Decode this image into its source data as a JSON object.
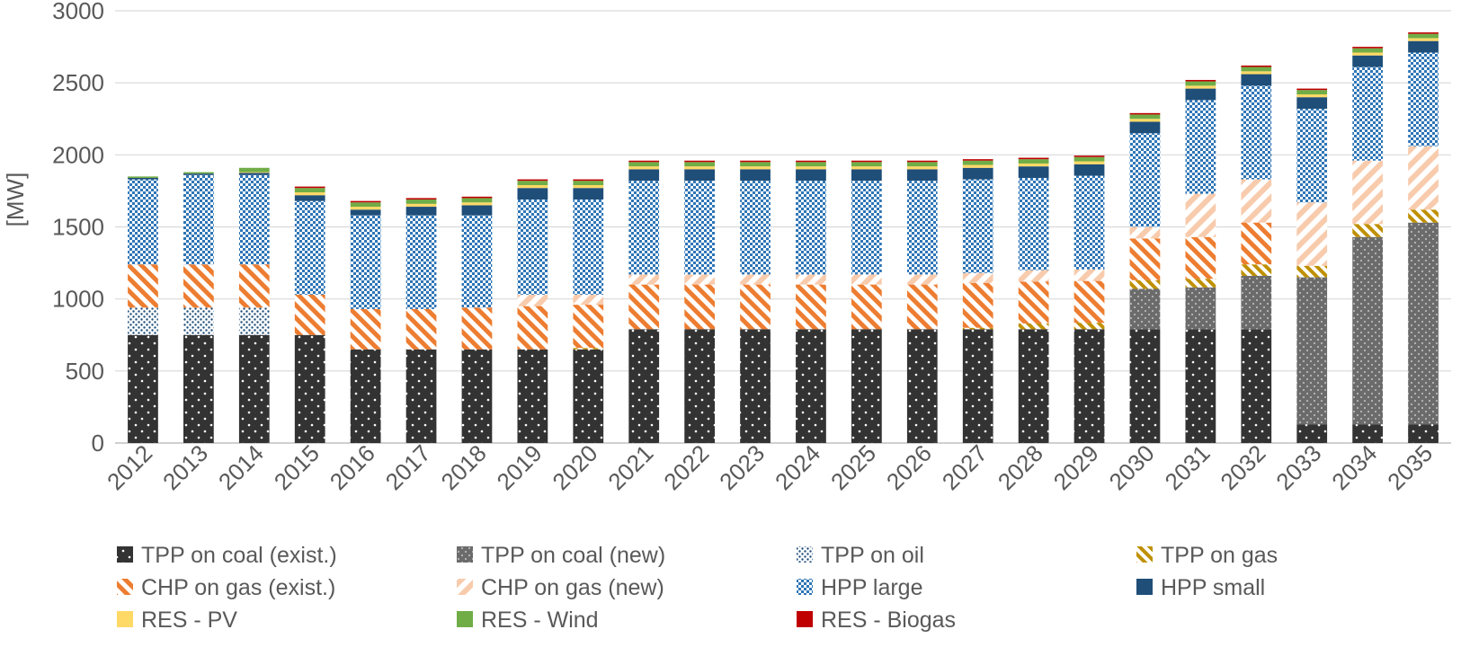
{
  "chart_data": {
    "type": "bar",
    "stacked": true,
    "title": "",
    "xlabel": "",
    "ylabel": "[MW]",
    "ylim": [
      0,
      3000
    ],
    "yticks": [
      0,
      500,
      1000,
      1500,
      2000,
      2500,
      3000
    ],
    "grid": true,
    "legend_position": "bottom",
    "categories": [
      "2012",
      "2013",
      "2014",
      "2015",
      "2016",
      "2017",
      "2018",
      "2019",
      "2020",
      "2021",
      "2022",
      "2023",
      "2024",
      "2025",
      "2026",
      "2027",
      "2028",
      "2029",
      "2030",
      "2031",
      "2032",
      "2033",
      "2034",
      "2035"
    ],
    "series": [
      {
        "name": "TPP on coal (exist.)",
        "color": "#333333",
        "pattern": "dots-white",
        "values": [
          750,
          750,
          750,
          750,
          650,
          650,
          650,
          650,
          650,
          790,
          790,
          790,
          790,
          790,
          790,
          790,
          790,
          790,
          790,
          790,
          790,
          130,
          130,
          130
        ]
      },
      {
        "name": "TPP on coal (new)",
        "color": "#7f7f7f",
        "pattern": "dots-light",
        "values": [
          0,
          0,
          0,
          0,
          0,
          0,
          0,
          0,
          0,
          0,
          0,
          0,
          0,
          0,
          0,
          0,
          0,
          0,
          280,
          290,
          370,
          1020,
          1300,
          1400
        ]
      },
      {
        "name": "TPP on oil",
        "color": "#1f4e79",
        "pattern": "dots-blue",
        "values": [
          190,
          190,
          190,
          0,
          0,
          0,
          0,
          0,
          0,
          0,
          0,
          0,
          0,
          0,
          0,
          0,
          0,
          0,
          0,
          0,
          0,
          0,
          0,
          0
        ]
      },
      {
        "name": "TPP on gas",
        "color": "#bf9000",
        "pattern": "stripes-gold",
        "values": [
          0,
          0,
          0,
          0,
          0,
          0,
          0,
          0,
          10,
          0,
          0,
          0,
          0,
          0,
          0,
          10,
          40,
          45,
          60,
          60,
          80,
          80,
          90,
          90
        ]
      },
      {
        "name": "CHP on gas (exist.)",
        "color": "#ed7d31",
        "pattern": "stripes-orange",
        "values": [
          300,
          300,
          300,
          280,
          280,
          280,
          290,
          300,
          300,
          310,
          310,
          310,
          310,
          310,
          310,
          310,
          290,
          290,
          290,
          290,
          290,
          0,
          0,
          0
        ]
      },
      {
        "name": "CHP on gas (new)",
        "color": "#f8cbad",
        "pattern": "stripes-peach",
        "values": [
          0,
          0,
          0,
          0,
          0,
          0,
          0,
          80,
          70,
          70,
          70,
          70,
          70,
          70,
          70,
          70,
          80,
          80,
          80,
          300,
          300,
          440,
          440,
          440
        ]
      },
      {
        "name": "HPP large",
        "color": "#2e75b6",
        "pattern": "checker-blue",
        "values": [
          590,
          620,
          620,
          650,
          650,
          650,
          640,
          660,
          660,
          650,
          650,
          650,
          650,
          650,
          650,
          650,
          640,
          650,
          650,
          650,
          650,
          650,
          650,
          650
        ]
      },
      {
        "name": "HPP small",
        "color": "#1f4e79",
        "pattern": "solid",
        "values": [
          10,
          10,
          15,
          40,
          40,
          60,
          70,
          80,
          80,
          80,
          80,
          80,
          80,
          80,
          80,
          80,
          80,
          80,
          80,
          80,
          80,
          80,
          80,
          80
        ]
      },
      {
        "name": "RES - PV",
        "color": "#ffd966",
        "pattern": "solid",
        "values": [
          0,
          0,
          5,
          20,
          20,
          20,
          20,
          20,
          20,
          20,
          20,
          20,
          20,
          20,
          20,
          20,
          20,
          20,
          20,
          20,
          20,
          20,
          20,
          20
        ]
      },
      {
        "name": "RES - Wind",
        "color": "#70ad47",
        "pattern": "solid",
        "values": [
          10,
          10,
          30,
          30,
          30,
          30,
          30,
          30,
          30,
          30,
          30,
          30,
          30,
          30,
          30,
          30,
          30,
          30,
          30,
          30,
          30,
          30,
          30,
          30
        ]
      },
      {
        "name": "RES - Biogas",
        "color": "#c00000",
        "pattern": "solid",
        "values": [
          0,
          0,
          0,
          10,
          10,
          10,
          10,
          10,
          10,
          10,
          10,
          10,
          10,
          10,
          10,
          10,
          10,
          10,
          10,
          10,
          10,
          10,
          10,
          10
        ]
      }
    ]
  }
}
